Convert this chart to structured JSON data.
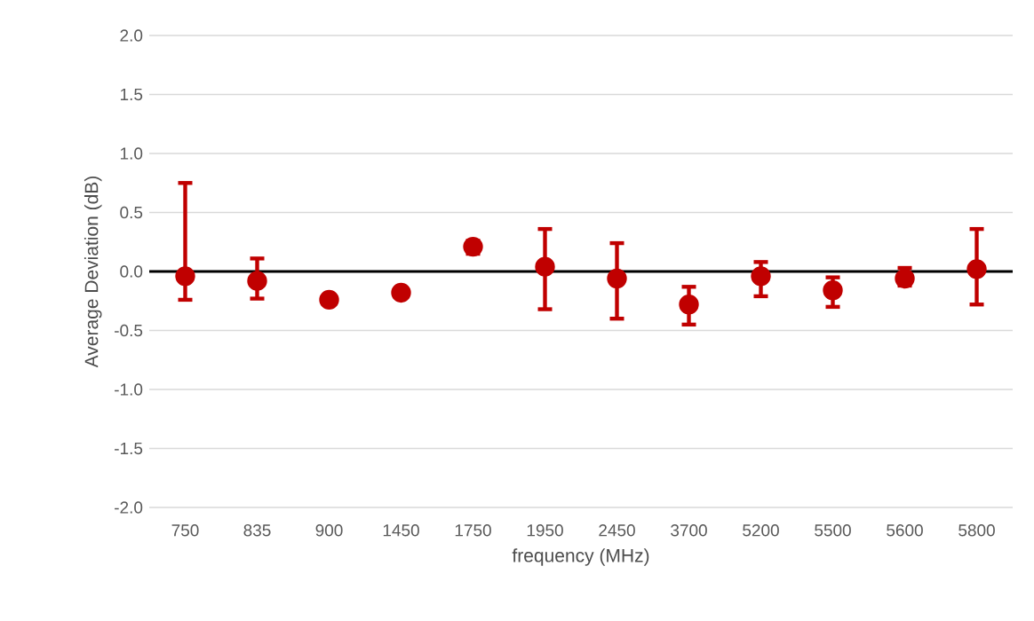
{
  "chart_data": {
    "type": "scatter",
    "xlabel": "frequency (MHz)",
    "ylabel": "Average Deviation (dB)",
    "categories": [
      "750",
      "835",
      "900",
      "1450",
      "1750",
      "1950",
      "2450",
      "3700",
      "5200",
      "5500",
      "5600",
      "5800"
    ],
    "values": [
      -0.04,
      -0.08,
      -0.24,
      -0.18,
      0.21,
      0.04,
      -0.06,
      -0.28,
      -0.04,
      -0.16,
      -0.06,
      0.02
    ],
    "errors": [
      [
        -0.24,
        0.75
      ],
      [
        -0.23,
        0.11
      ],
      null,
      [
        -0.2,
        -0.15
      ],
      [
        0.15,
        0.26
      ],
      [
        -0.32,
        0.36
      ],
      [
        -0.4,
        0.24
      ],
      [
        -0.45,
        -0.13
      ],
      [
        -0.21,
        0.08
      ],
      [
        -0.3,
        -0.05
      ],
      [
        -0.12,
        0.03
      ],
      [
        -0.28,
        0.36
      ]
    ],
    "color": "#c00000",
    "marker": "circle",
    "ylim": [
      -2.0,
      2.0
    ],
    "yticks": [
      {
        "value": -2.0,
        "label": "-2.0"
      },
      {
        "value": -1.5,
        "label": "-1.5"
      },
      {
        "value": -1.0,
        "label": "-1.0"
      },
      {
        "value": -0.5,
        "label": "-0.5"
      },
      {
        "value": 0.0,
        "label": "0.0"
      },
      {
        "value": 0.5,
        "label": "0.5"
      },
      {
        "value": 1.0,
        "label": "1.0"
      },
      {
        "value": 1.5,
        "label": "1.5"
      },
      {
        "value": 2.0,
        "label": "2.0"
      }
    ],
    "grid": "y"
  }
}
